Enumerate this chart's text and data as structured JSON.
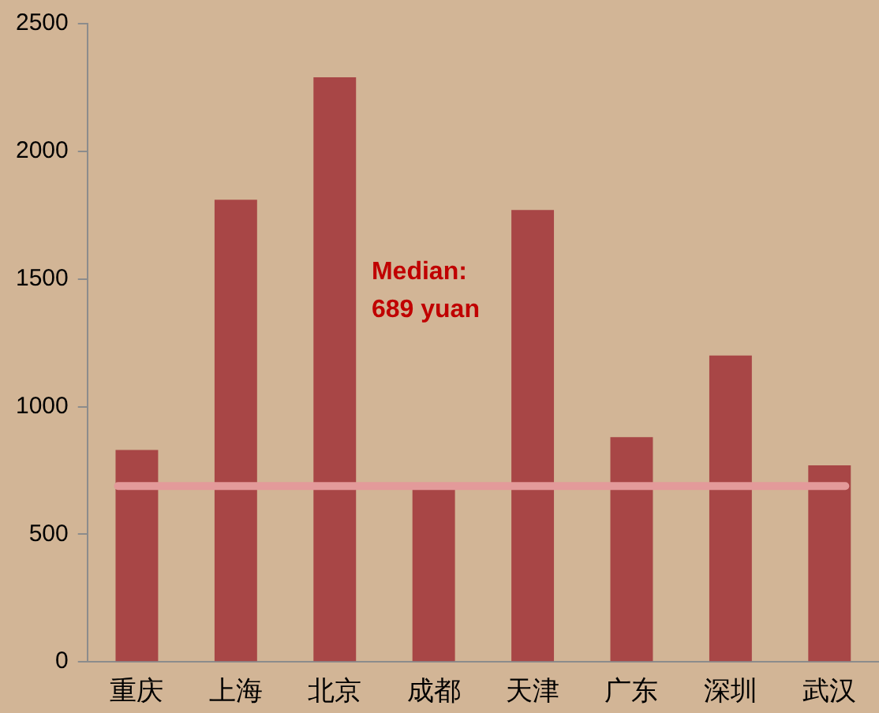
{
  "chart_data": {
    "type": "bar",
    "categories": [
      "重庆",
      "上海",
      "北京",
      "成都",
      "天津",
      "广东",
      "深圳",
      "武汉"
    ],
    "values": [
      830,
      1810,
      2290,
      680,
      1770,
      880,
      1200,
      770
    ],
    "color": "#a84646",
    "ylim": [
      0,
      2500
    ],
    "yticks": [
      0,
      500,
      1000,
      1500,
      2000,
      2500
    ],
    "grid": false,
    "legend": false,
    "annotations": [
      "Median:\n689 yuan"
    ],
    "ref_lines": [
      {
        "axis": "y",
        "value": 689,
        "color": "#e39a9a"
      }
    ]
  }
}
